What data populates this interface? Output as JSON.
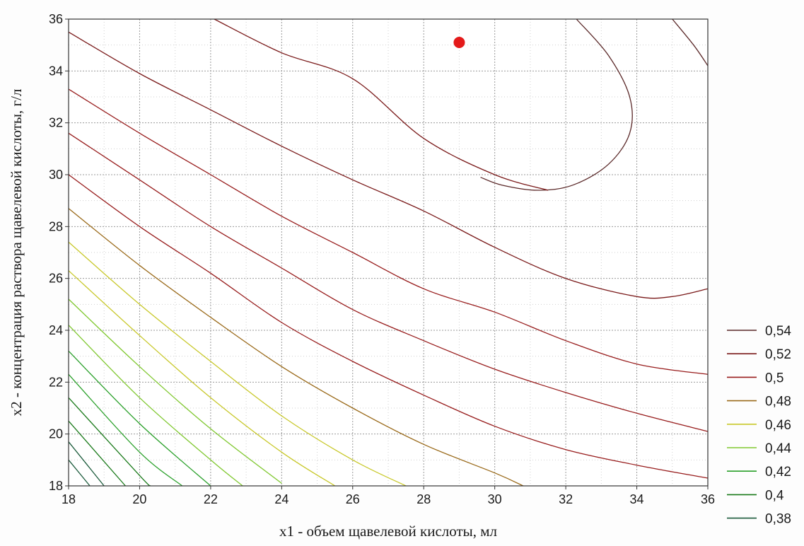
{
  "chart_data": {
    "type": "contour",
    "xlabel": "x1 - объем щавелевой кислоты, мл",
    "ylabel": "x2 - концентрация раствора щавелевой кислоты, г/л",
    "xlim": [
      18,
      36
    ],
    "ylim": [
      18,
      36
    ],
    "x_ticks": [
      "18",
      "20",
      "22",
      "24",
      "26",
      "28",
      "30",
      "32",
      "34",
      "36"
    ],
    "y_ticks": [
      "18",
      "20",
      "22",
      "24",
      "26",
      "28",
      "30",
      "32",
      "34",
      "36"
    ],
    "grid": true,
    "legend_position": "right",
    "optimum_point": {
      "x": 29,
      "y": 35.1,
      "color": "#e41a1a"
    },
    "contours": [
      {
        "label": "0,54",
        "color": "#5a2828",
        "lines": [
          [
            [
              32.3,
              36
            ],
            [
              33.2,
              34.6
            ],
            [
              33.8,
              33.0
            ],
            [
              33.8,
              31.6
            ],
            [
              33.2,
              30.4
            ],
            [
              32.2,
              29.6
            ],
            [
              31.2,
              29.4
            ],
            [
              30.2,
              29.6
            ],
            [
              29.6,
              29.9
            ]
          ],
          [
            [
              35.0,
              36
            ],
            [
              35.6,
              35.0
            ],
            [
              36,
              34.2
            ]
          ]
        ]
      },
      {
        "label": "0,52",
        "color": "#7a1a1a",
        "lines": [
          [
            [
              22.1,
              36
            ],
            [
              24.0,
              34.7
            ],
            [
              26.0,
              33.7
            ],
            [
              28.0,
              31.4
            ],
            [
              30.0,
              30.0
            ],
            [
              31.5,
              29.4
            ]
          ],
          [
            [
              36,
              25.6
            ],
            [
              35.0,
              25.3
            ],
            [
              34.0,
              25.3
            ],
            [
              32.0,
              26.0
            ],
            [
              30.0,
              27.2
            ],
            [
              28.0,
              28.6
            ],
            [
              26.0,
              29.8
            ],
            [
              24.0,
              31.1
            ],
            [
              22.0,
              32.5
            ],
            [
              20.0,
              33.9
            ],
            [
              18.0,
              35.5
            ]
          ]
        ]
      },
      {
        "label": "0,5",
        "color": "#981d1d",
        "lines": [
          [
            [
              18.0,
              33.3
            ],
            [
              20.0,
              31.6
            ],
            [
              22.0,
              30.0
            ],
            [
              24.0,
              28.4
            ],
            [
              26.0,
              27.0
            ],
            [
              28.0,
              25.6
            ],
            [
              30.0,
              24.7
            ],
            [
              32.0,
              23.6
            ],
            [
              34.0,
              22.7
            ],
            [
              36,
              22.3
            ]
          ],
          [
            [
              18.0,
              31.6
            ],
            [
              20.0,
              29.8
            ],
            [
              22.0,
              28.0
            ],
            [
              24.0,
              26.4
            ],
            [
              26.0,
              24.8
            ],
            [
              28.0,
              23.6
            ],
            [
              30.0,
              22.5
            ],
            [
              32.0,
              21.6
            ],
            [
              34.0,
              20.8
            ],
            [
              36,
              20.1
            ]
          ],
          [
            [
              18.0,
              30.0
            ],
            [
              20.0,
              28.0
            ],
            [
              22.0,
              26.2
            ],
            [
              24.0,
              24.3
            ],
            [
              26.0,
              22.8
            ],
            [
              28.0,
              21.5
            ],
            [
              30.0,
              20.3
            ],
            [
              32.0,
              19.4
            ],
            [
              34.0,
              18.8
            ],
            [
              36,
              18.3
            ]
          ]
        ]
      },
      {
        "label": "0,48",
        "color": "#9a6a1a",
        "lines": [
          [
            [
              18.0,
              28.7
            ],
            [
              20.0,
              26.5
            ],
            [
              22.0,
              24.5
            ],
            [
              24.0,
              22.6
            ],
            [
              26.0,
              21.0
            ],
            [
              28.0,
              19.6
            ],
            [
              30.0,
              18.5
            ],
            [
              30.8,
              18.0
            ]
          ]
        ]
      },
      {
        "label": "0,46",
        "color": "#c8c82a",
        "lines": [
          [
            [
              18.0,
              27.4
            ],
            [
              20.0,
              25.0
            ],
            [
              22.0,
              22.8
            ],
            [
              24.0,
              20.7
            ],
            [
              26.0,
              19.0
            ],
            [
              27.5,
              18.0
            ]
          ],
          [
            [
              18.0,
              26.3
            ],
            [
              20.0,
              23.8
            ],
            [
              22.0,
              21.4
            ],
            [
              24.0,
              19.3
            ],
            [
              25.5,
              18.0
            ]
          ]
        ]
      },
      {
        "label": "0,44",
        "color": "#80c830",
        "lines": [
          [
            [
              18.0,
              25.2
            ],
            [
              20.0,
              22.6
            ],
            [
              22.0,
              20.2
            ],
            [
              24.0,
              18.1
            ]
          ],
          [
            [
              18.0,
              24.2
            ],
            [
              20.0,
              21.4
            ],
            [
              22.0,
              19.0
            ],
            [
              22.9,
              18.0
            ]
          ]
        ]
      },
      {
        "label": "0,42",
        "color": "#2aa02a",
        "lines": [
          [
            [
              18.0,
              23.2
            ],
            [
              20.0,
              20.4
            ],
            [
              22.0,
              18.0
            ]
          ],
          [
            [
              18.0,
              22.3
            ],
            [
              20.0,
              19.3
            ],
            [
              21.2,
              18.0
            ]
          ]
        ]
      },
      {
        "label": "0,4",
        "color": "#1a7a1a",
        "lines": [
          [
            [
              18.0,
              21.4
            ],
            [
              20.0,
              18.4
            ],
            [
              20.3,
              18.0
            ]
          ],
          [
            [
              18.0,
              20.5
            ],
            [
              19.6,
              18.0
            ]
          ]
        ]
      },
      {
        "label": "0,38",
        "color": "#1a5a3a",
        "lines": [
          [
            [
              18.0,
              19.7
            ],
            [
              19.0,
              18.0
            ]
          ],
          [
            [
              18.0,
              19.0
            ],
            [
              18.6,
              18.0
            ]
          ]
        ]
      }
    ]
  }
}
